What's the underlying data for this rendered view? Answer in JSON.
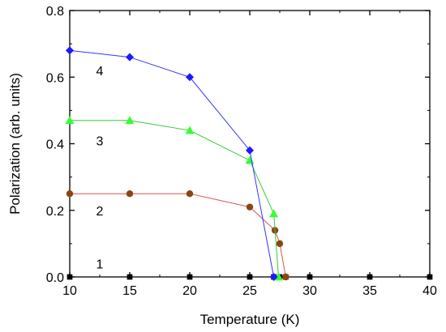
{
  "chart_data": {
    "type": "line",
    "xlabel": "Temperature (K)",
    "ylabel": "Polarization (arb. units)",
    "xlim": [
      10,
      40
    ],
    "ylim": [
      0,
      0.8
    ],
    "x_ticks": [
      10,
      15,
      20,
      25,
      30,
      35,
      40
    ],
    "y_ticks": [
      0.0,
      0.2,
      0.4,
      0.6,
      0.8
    ],
    "x_tick_labels": [
      "10",
      "15",
      "20",
      "25",
      "30",
      "35",
      "40"
    ],
    "y_tick_labels": [
      "0.0",
      "0.2",
      "0.4",
      "0.6",
      "0.8"
    ],
    "grid": false,
    "series": [
      {
        "name": "1",
        "marker": "square",
        "color": "#000000",
        "line_color": "#000000",
        "x": [
          10,
          15,
          20,
          25,
          27,
          27.5,
          28,
          30,
          35,
          40
        ],
        "y": [
          0,
          0,
          0,
          0,
          0,
          0,
          0,
          0,
          0,
          0
        ],
        "label_pos": [
          12.5,
          0.04
        ]
      },
      {
        "name": "2",
        "marker": "circle",
        "color": "#8b4513",
        "line_color": "#d9534f",
        "x": [
          10,
          15,
          20,
          25,
          27.1,
          27.5,
          28
        ],
        "y": [
          0.25,
          0.25,
          0.25,
          0.21,
          0.14,
          0.1,
          0
        ],
        "label_pos": [
          12.5,
          0.2
        ]
      },
      {
        "name": "3",
        "marker": "triangle",
        "color": "#33ff33",
        "line_color": "#33cc33",
        "x": [
          10,
          15,
          20,
          25,
          27,
          27.4
        ],
        "y": [
          0.47,
          0.47,
          0.44,
          0.35,
          0.19,
          0
        ],
        "label_pos": [
          12.5,
          0.41
        ]
      },
      {
        "name": "4",
        "marker": "diamond",
        "color": "#1a1aff",
        "line_color": "#3333ff",
        "x": [
          10,
          15,
          20,
          25,
          27
        ],
        "y": [
          0.68,
          0.66,
          0.6,
          0.38,
          0
        ],
        "label_pos": [
          12.5,
          0.62
        ]
      }
    ]
  }
}
